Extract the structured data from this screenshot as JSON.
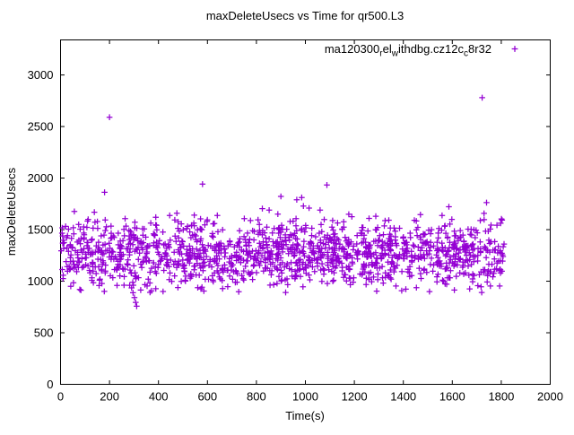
{
  "chart_data": {
    "type": "scatter",
    "title": "maxDeleteUsecs vs Time for qr500.L3",
    "xlabel": "Time(s)",
    "ylabel": "maxDeleteUsecs",
    "xlim": [
      0,
      2000
    ],
    "ylim": [
      0,
      3340
    ],
    "xticks": [
      0,
      200,
      400,
      600,
      800,
      1000,
      1200,
      1400,
      1600,
      1800,
      2000
    ],
    "yticks": [
      0,
      500,
      1000,
      1500,
      2000,
      2500,
      3000
    ],
    "grid": false,
    "legend_position": "top-right-inside",
    "series": [
      {
        "name": "ma120300_rel_withdbg.cz12c_c8r32",
        "label_segments": [
          {
            "t": "ma120300"
          },
          {
            "t": "r",
            "sub": true
          },
          {
            "t": "el"
          },
          {
            "t": "w",
            "sub": true
          },
          {
            "t": "ithdbg.cz12c"
          },
          {
            "t": "c",
            "sub": true
          },
          {
            "t": "8r32"
          }
        ],
        "marker": "plus",
        "color": "#9400D3",
        "x_range_observed": [
          2,
          1812
        ],
        "band_y": {
          "mean": 1245,
          "sigma": 148,
          "dense_min": 900,
          "dense_max": 1650
        },
        "cloud": {
          "n": 1420,
          "seed": 1337,
          "upper_tail_fraction": 0.045
        },
        "notable_points": [
          [
            200,
            2590
          ],
          [
            1722,
            2780
          ],
          [
            580,
            1941
          ],
          [
            1088,
            1933
          ],
          [
            180,
            1862
          ],
          [
            900,
            1822
          ],
          [
            985,
            1812
          ],
          [
            965,
            1790
          ],
          [
            1740,
            1762
          ],
          [
            1586,
            1722
          ],
          [
            824,
            1704
          ],
          [
            1060,
            1690
          ],
          [
            290,
            935
          ],
          [
            296,
            888
          ],
          [
            302,
            842
          ],
          [
            307,
            795
          ],
          [
            311,
            758
          ]
        ]
      }
    ]
  }
}
